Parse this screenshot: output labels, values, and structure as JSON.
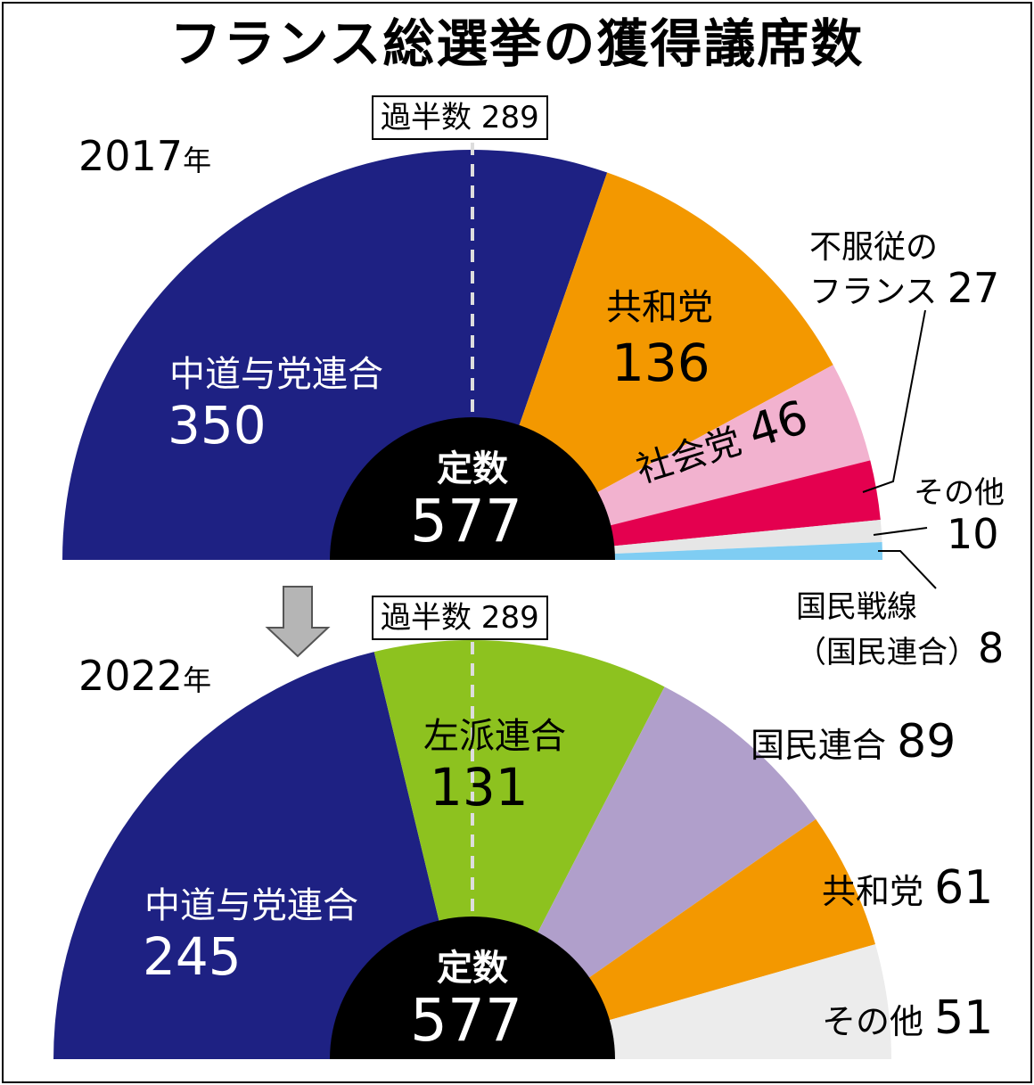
{
  "title": "フランス総選挙の獲得議席数",
  "chart_data": [
    {
      "type": "pie",
      "subtype": "half-donut",
      "year": "2017",
      "year_suffix": "年",
      "majority_label": "過半数 289",
      "total_label": "定数",
      "total": 577,
      "series": [
        {
          "name": "中道与党連合",
          "value": 350,
          "color": "#1e2183"
        },
        {
          "name": "共和党",
          "value": 136,
          "color": "#f39800"
        },
        {
          "name": "社会党",
          "value": 46,
          "color": "#f2b2cf"
        },
        {
          "name": "不服従のフランス",
          "name_line1": "不服従の",
          "name_line2": "フランス",
          "value": 27,
          "color": "#e4004f"
        },
        {
          "name": "その他",
          "value": 10,
          "color": "#e6e6e6"
        },
        {
          "name": "国民戦線（国民連合）",
          "name_line1": "国民戦線",
          "name_line2": "（国民連合）",
          "value": 8,
          "color": "#7fcdf3"
        }
      ]
    },
    {
      "type": "pie",
      "subtype": "half-donut",
      "year": "2022",
      "year_suffix": "年",
      "majority_label": "過半数 289",
      "total_label": "定数",
      "total": 577,
      "series": [
        {
          "name": "中道与党連合",
          "value": 245,
          "color": "#1e2183"
        },
        {
          "name": "左派連合",
          "value": 131,
          "color": "#8dc21f"
        },
        {
          "name": "国民連合",
          "value": 89,
          "color": "#b09fcb"
        },
        {
          "name": "共和党",
          "value": 61,
          "color": "#f39800"
        },
        {
          "name": "その他",
          "value": 51,
          "color": "#ececec"
        }
      ]
    }
  ]
}
